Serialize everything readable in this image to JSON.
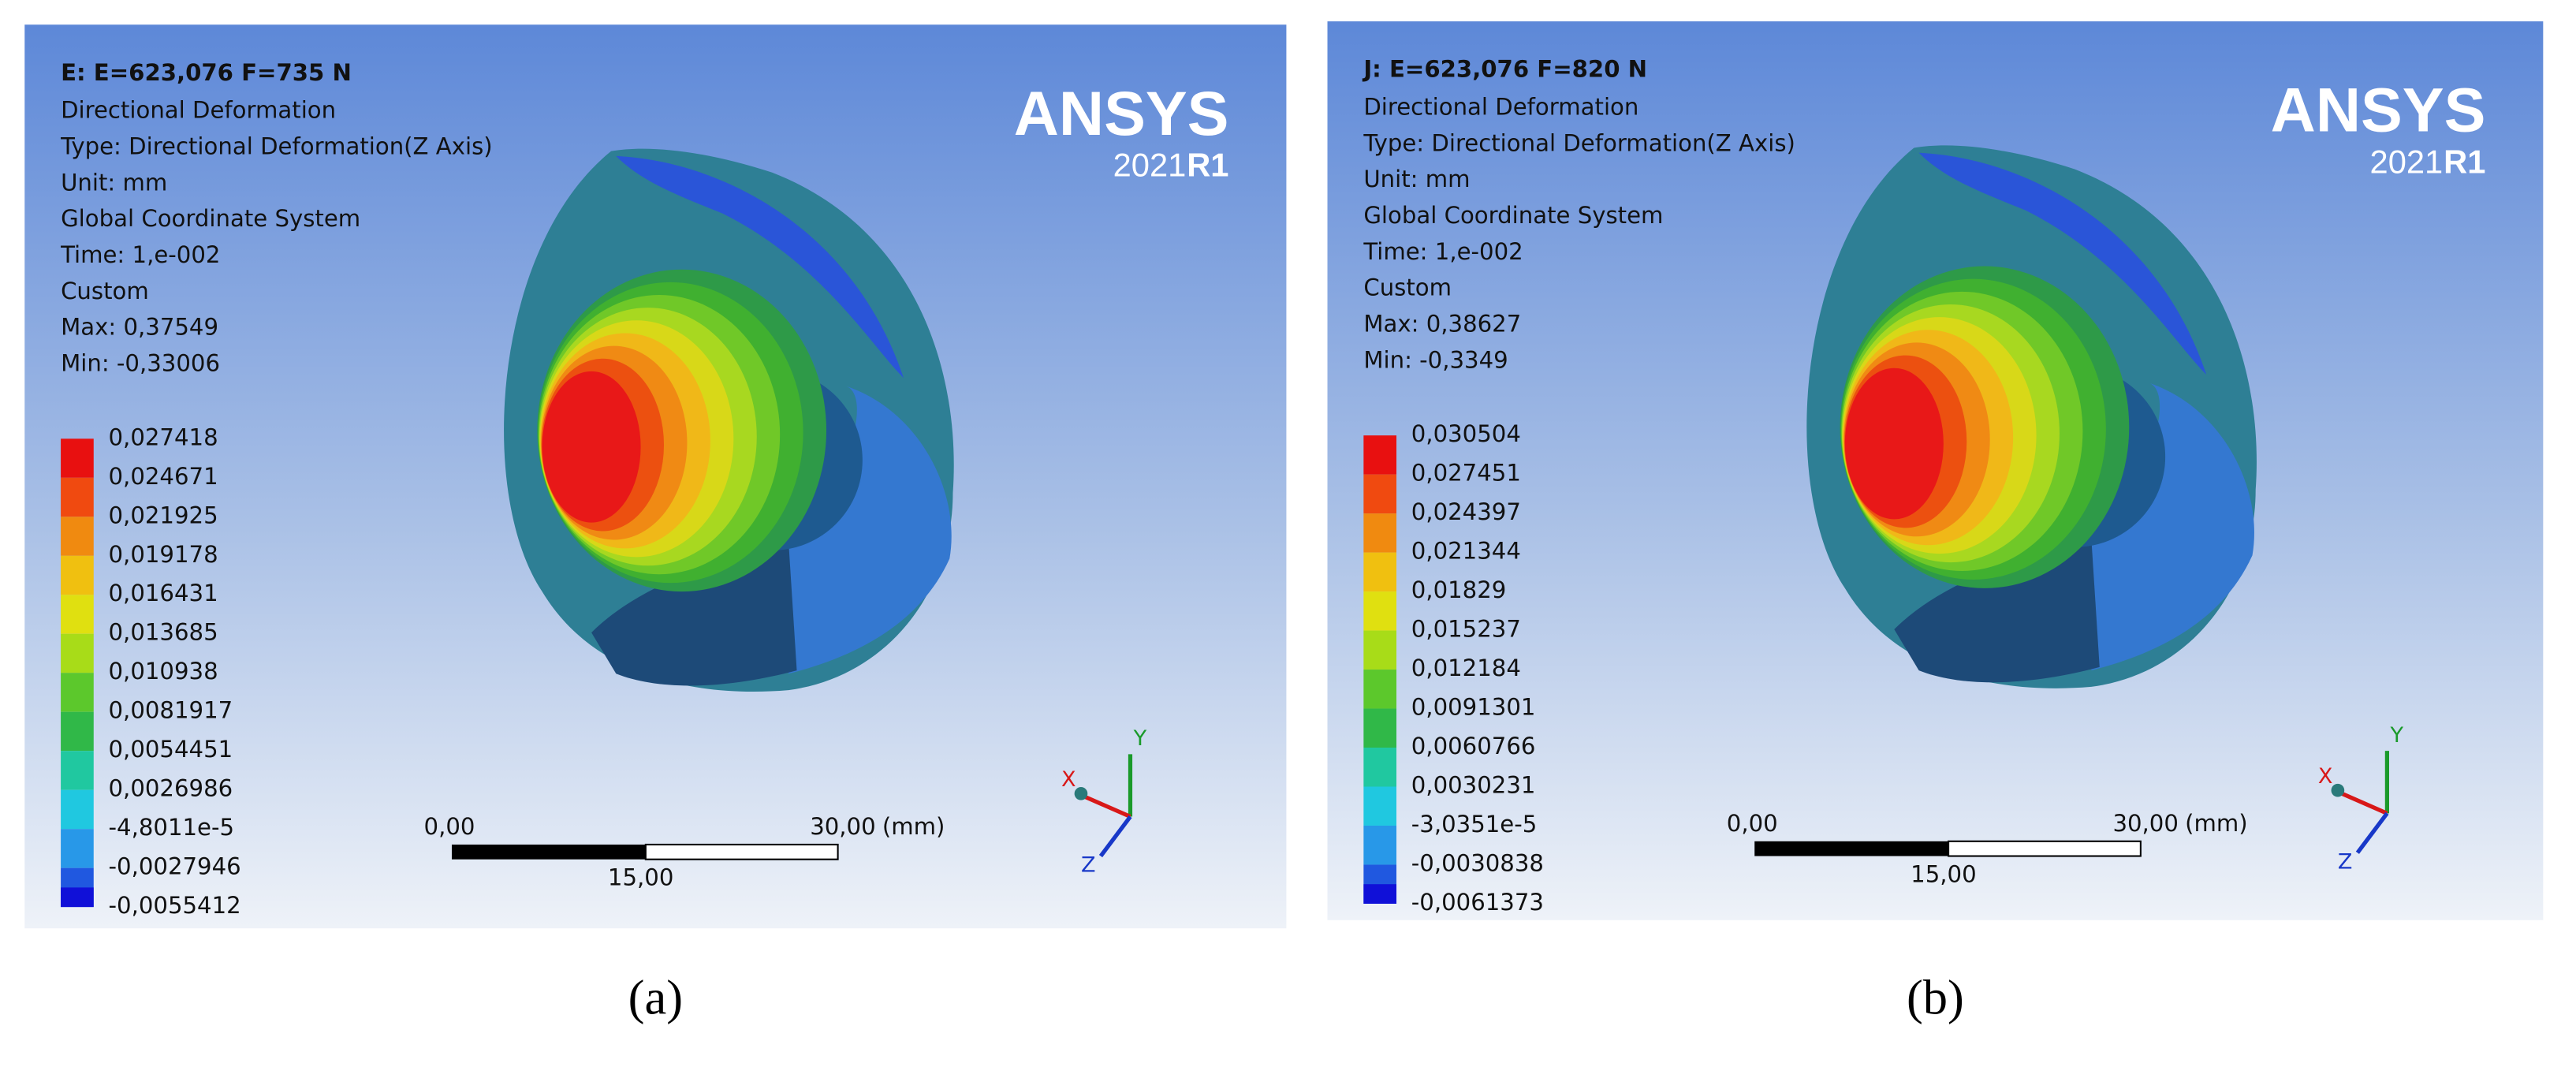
{
  "figure": {
    "panels": [
      {
        "header": {
          "title": "E: E=623,076 F=735 N",
          "lines": [
            "Directional Deformation",
            "Type: Directional Deformation(Z Axis)",
            "Unit: mm",
            "Global Coordinate System",
            "Time: 1,e-002",
            "Custom",
            "Max: 0,37549",
            "Min: -0,33006"
          ]
        },
        "legend": {
          "labels": [
            "0,027418",
            "0,024671",
            "0,021925",
            "0,019178",
            "0,016431",
            "0,013685",
            "0,010938",
            "0,0081917",
            "0,0054451",
            "0,0026986",
            "-4,8011e-5",
            "-0,0027946",
            "-0,0055412"
          ]
        },
        "scale_bar": {
          "start": "0,00",
          "end": "30,00",
          "unit": "(mm)",
          "mid": "15,00"
        },
        "logo": {
          "name": "ANSYS",
          "year": "2021",
          "release": "R1"
        },
        "triad": {
          "x": "X",
          "y": "Y",
          "z": "Z"
        },
        "caption": "(a)"
      },
      {
        "header": {
          "title": "J: E=623,076 F=820 N",
          "lines": [
            "Directional Deformation",
            "Type: Directional Deformation(Z Axis)",
            "Unit: mm",
            "Global Coordinate System",
            "Time: 1,e-002",
            "Custom",
            "Max: 0,38627",
            "Min: -0,3349"
          ]
        },
        "legend": {
          "labels": [
            "0,030504",
            "0,027451",
            "0,024397",
            "0,021344",
            "0,01829",
            "0,015237",
            "0,012184",
            "0,0091301",
            "0,0060766",
            "0,0030231",
            "-3,0351e-5",
            "-0,0030838",
            "-0,0061373"
          ]
        },
        "scale_bar": {
          "start": "0,00",
          "end": "30,00",
          "unit": "(mm)",
          "mid": "15,00"
        },
        "logo": {
          "name": "ANSYS",
          "year": "2021",
          "release": "R1"
        },
        "triad": {
          "x": "X",
          "y": "Y",
          "z": "Z"
        },
        "caption": "(b)"
      }
    ]
  }
}
